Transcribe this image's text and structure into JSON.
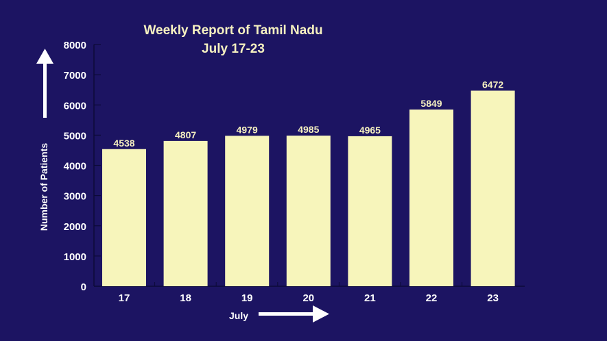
{
  "chart_data": {
    "type": "bar",
    "title": "Weekly Report of Tamil Nadu",
    "subtitle": "July 17-23",
    "xlabel": "July",
    "ylabel": "Number of Patients",
    "categories": [
      "17",
      "18",
      "19",
      "20",
      "21",
      "22",
      "23"
    ],
    "values": [
      4538,
      4807,
      4979,
      4985,
      4965,
      5849,
      6472
    ],
    "ylim": [
      0,
      8000
    ],
    "yticks": [
      0,
      1000,
      2000,
      3000,
      4000,
      5000,
      6000,
      7000,
      8000
    ],
    "grid": false,
    "data_labels": true,
    "colors": {
      "background": "#1c1462",
      "bar": "#f7f5bb",
      "text": "#f5f0c0",
      "arrows": "#ffffff"
    }
  }
}
